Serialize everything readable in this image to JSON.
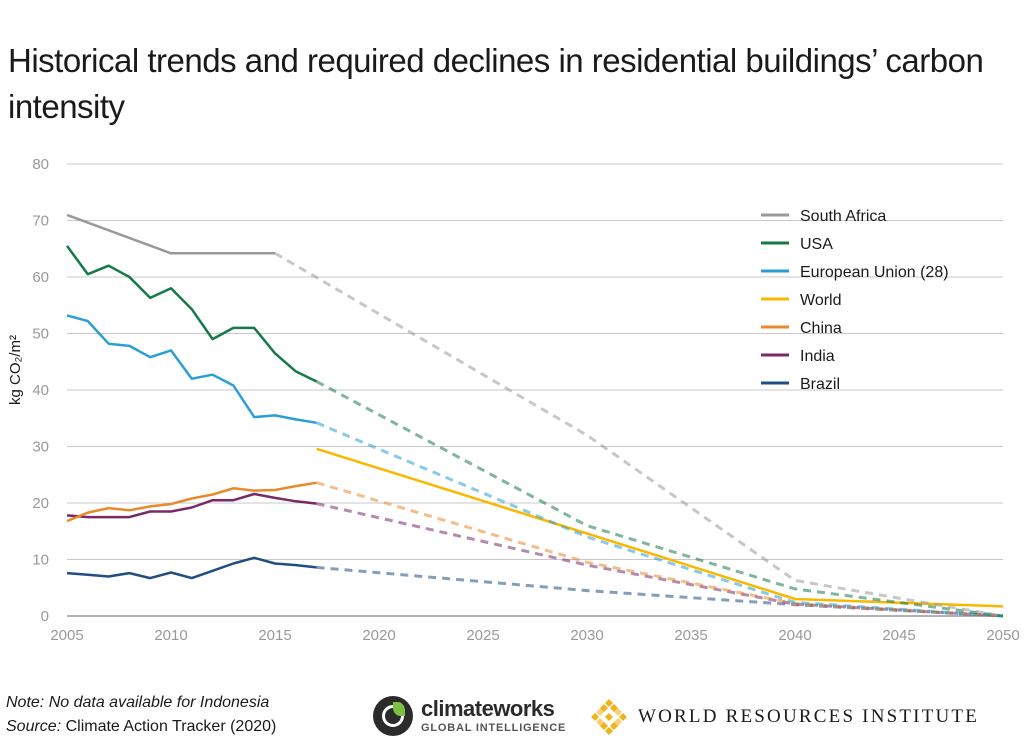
{
  "title": "Historical trends and required declines in residential buildings’ carbon intensity",
  "footer": {
    "note": "Note: No data available for Indonesia",
    "source_label": "Source:",
    "source_text": " Climate Action Tracker (2020)"
  },
  "logos": {
    "climateworks_name": "climateworks",
    "climateworks_sub": "GLOBAL INTELLIGENCE",
    "wri_name": "WORLD RESOURCES INSTITUTE"
  },
  "chart_data": {
    "type": "line",
    "title": "Historical trends and required declines in residential buildings’ carbon intensity",
    "xlabel": "",
    "ylabel": "kg CO₂/m²",
    "xlim": [
      2005,
      2050
    ],
    "ylim": [
      0,
      80
    ],
    "xticks": [
      2005,
      2010,
      2015,
      2020,
      2025,
      2030,
      2035,
      2040,
      2045,
      2050
    ],
    "yticks": [
      0,
      10,
      20,
      30,
      40,
      50,
      60,
      70,
      80
    ],
    "grid": "horizontal",
    "legend_position": "top-right",
    "series": [
      {
        "name": "South Africa",
        "color": "#999999",
        "solid": [
          [
            2005,
            71
          ],
          [
            2010,
            64.2
          ],
          [
            2015,
            64.2
          ]
        ],
        "dashed": [
          [
            2015,
            64.2
          ],
          [
            2030,
            32
          ],
          [
            2040,
            6.3
          ],
          [
            2050,
            0
          ]
        ]
      },
      {
        "name": "USA",
        "color": "#157a4a",
        "solid": [
          [
            2005,
            65.5
          ],
          [
            2006,
            60.5
          ],
          [
            2007,
            62
          ],
          [
            2008,
            60
          ],
          [
            2009,
            56.3
          ],
          [
            2010,
            58
          ],
          [
            2011,
            54.3
          ],
          [
            2012,
            49
          ],
          [
            2013,
            51
          ],
          [
            2014,
            51
          ],
          [
            2015,
            46.5
          ],
          [
            2016,
            43.3
          ],
          [
            2017,
            41.5
          ]
        ],
        "dashed": [
          [
            2017,
            41.5
          ],
          [
            2030,
            16
          ],
          [
            2040,
            4.8
          ],
          [
            2050,
            0
          ]
        ]
      },
      {
        "name": "European Union (28)",
        "color": "#2a9fd6",
        "solid": [
          [
            2005,
            53.2
          ],
          [
            2006,
            52.2
          ],
          [
            2007,
            48.2
          ],
          [
            2008,
            47.8
          ],
          [
            2009,
            45.8
          ],
          [
            2010,
            47
          ],
          [
            2011,
            42
          ],
          [
            2012,
            42.7
          ],
          [
            2013,
            40.8
          ],
          [
            2014,
            35.2
          ],
          [
            2015,
            35.5
          ],
          [
            2016,
            34.8
          ],
          [
            2017,
            34.2
          ]
        ],
        "dashed": [
          [
            2017,
            34.2
          ],
          [
            2030,
            14
          ],
          [
            2040,
            2.4
          ],
          [
            2050,
            0
          ]
        ]
      },
      {
        "name": "World",
        "color": "#f9b800",
        "solid": [
          [
            2017,
            29.6
          ],
          [
            2030,
            14.6
          ],
          [
            2040,
            3
          ],
          [
            2050,
            1.7
          ]
        ],
        "dashed": []
      },
      {
        "name": "China",
        "color": "#e8892b",
        "solid": [
          [
            2005,
            16.8
          ],
          [
            2006,
            18.3
          ],
          [
            2007,
            19.1
          ],
          [
            2008,
            18.7
          ],
          [
            2009,
            19.4
          ],
          [
            2010,
            19.8
          ],
          [
            2011,
            20.8
          ],
          [
            2012,
            21.5
          ],
          [
            2013,
            22.6
          ],
          [
            2014,
            22.2
          ],
          [
            2015,
            22.3
          ],
          [
            2016,
            23
          ],
          [
            2017,
            23.6
          ]
        ],
        "dashed": [
          [
            2017,
            23.6
          ],
          [
            2030,
            9.5
          ],
          [
            2040,
            2.2
          ],
          [
            2050,
            0
          ]
        ]
      },
      {
        "name": "India",
        "color": "#7a2a66",
        "solid": [
          [
            2005,
            17.8
          ],
          [
            2006,
            17.5
          ],
          [
            2007,
            17.5
          ],
          [
            2008,
            17.5
          ],
          [
            2009,
            18.5
          ],
          [
            2010,
            18.5
          ],
          [
            2011,
            19.2
          ],
          [
            2012,
            20.5
          ],
          [
            2013,
            20.5
          ],
          [
            2014,
            21.6
          ],
          [
            2015,
            20.9
          ],
          [
            2016,
            20.3
          ],
          [
            2017,
            19.9
          ]
        ],
        "dashed": [
          [
            2017,
            19.9
          ],
          [
            2030,
            9
          ],
          [
            2040,
            2.1
          ],
          [
            2050,
            0
          ]
        ]
      },
      {
        "name": "Brazil",
        "color": "#1f4e82",
        "solid": [
          [
            2005,
            7.6
          ],
          [
            2006,
            7.3
          ],
          [
            2007,
            7
          ],
          [
            2008,
            7.6
          ],
          [
            2009,
            6.7
          ],
          [
            2010,
            7.7
          ],
          [
            2011,
            6.7
          ],
          [
            2012,
            8
          ],
          [
            2013,
            9.3
          ],
          [
            2014,
            10.3
          ],
          [
            2015,
            9.3
          ],
          [
            2016,
            9
          ],
          [
            2017,
            8.6
          ]
        ],
        "dashed": [
          [
            2017,
            8.6
          ],
          [
            2030,
            4.5
          ],
          [
            2040,
            2
          ],
          [
            2050,
            0
          ]
        ]
      }
    ]
  }
}
